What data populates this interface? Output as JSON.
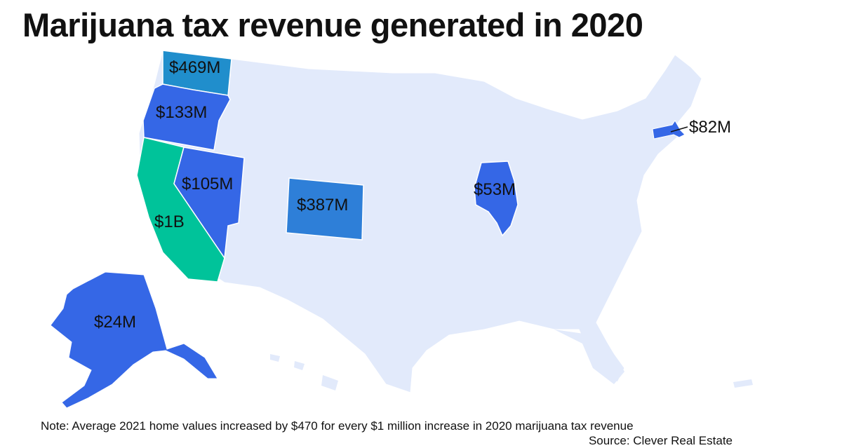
{
  "title": "Marijuana tax revenue generated in 2020",
  "note": "Note: Average 2021 home values increased by $470 for every $1 million increase in 2020 marijuana tax revenue",
  "source": "Source: Clever Real Estate",
  "colors": {
    "background_states": "#e2eafb",
    "california": "#00c39a",
    "washington": "#208ecc",
    "colorado": "#2e7fd8",
    "default_highlight": "#3567e6"
  },
  "states": [
    {
      "id": "washington",
      "name": "Washington",
      "revenue": "$469M"
    },
    {
      "id": "oregon",
      "name": "Oregon",
      "revenue": "$133M"
    },
    {
      "id": "nevada",
      "name": "Nevada",
      "revenue": "$105M"
    },
    {
      "id": "california",
      "name": "California",
      "revenue": "$1B"
    },
    {
      "id": "colorado",
      "name": "Colorado",
      "revenue": "$387M"
    },
    {
      "id": "illinois",
      "name": "Illinois",
      "revenue": "$53M"
    },
    {
      "id": "massachusetts",
      "name": "Massachusetts",
      "revenue": "$82M"
    },
    {
      "id": "alaska",
      "name": "Alaska",
      "revenue": "$24M"
    }
  ]
}
